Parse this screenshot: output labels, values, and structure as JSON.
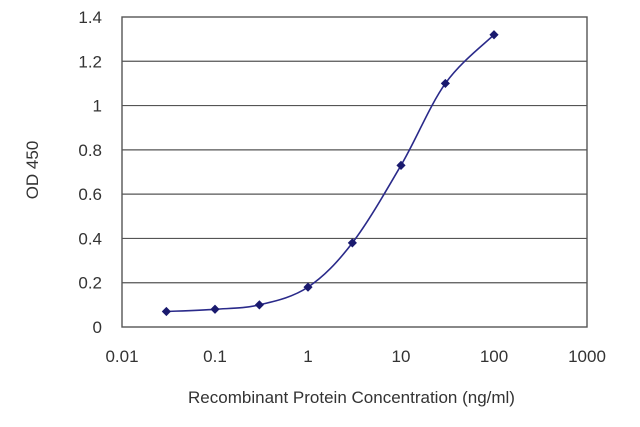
{
  "chart_data": {
    "type": "line",
    "title": "",
    "xlabel": "Recombinant Protein Concentration (ng/ml)",
    "ylabel": "OD 450",
    "x_scale": "log",
    "xlim": [
      0.01,
      1000
    ],
    "ylim": [
      0,
      1.4
    ],
    "x_ticks": [
      0.01,
      0.1,
      1,
      10,
      100,
      1000
    ],
    "x_tick_labels": [
      "0.01",
      "0.1",
      "1",
      "10",
      "100",
      "1000"
    ],
    "y_ticks": [
      0,
      0.2,
      0.4,
      0.6,
      0.8,
      1,
      1.2,
      1.4
    ],
    "y_tick_labels": [
      "0",
      "0.2",
      "0.4",
      "0.6",
      "0.8",
      "1",
      "1.2",
      "1.4"
    ],
    "grid": "horizontal",
    "legend": "none",
    "series": [
      {
        "x": [
          0.03,
          0.1,
          0.3,
          1,
          3,
          10,
          30,
          100
        ],
        "y": [
          0.07,
          0.08,
          0.1,
          0.18,
          0.38,
          0.73,
          1.1,
          1.32
        ]
      }
    ],
    "colors": {
      "series": "#2a2a8a",
      "marker": "#1a1a6e",
      "grid": "#555555",
      "plot_border": "#555555",
      "background": "#ffffff"
    }
  }
}
